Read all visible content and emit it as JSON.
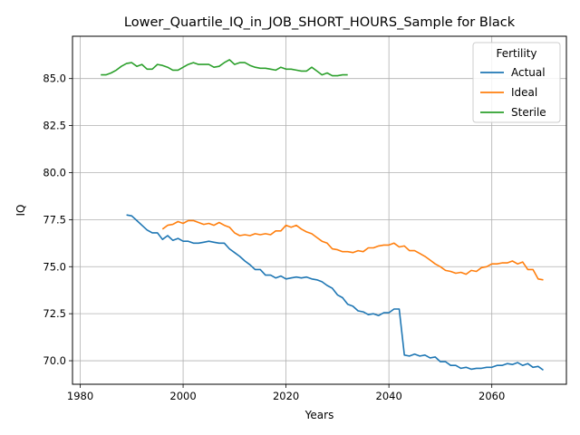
{
  "chart_data": {
    "type": "line",
    "title": "Lower_Quartile_IQ_in_JOB_SHORT_HOURS_Sample for Black",
    "xlabel": "Years",
    "ylabel": "IQ",
    "xlim": [
      1978.5,
      2074.5
    ],
    "ylim": [
      68.75,
      87.25
    ],
    "xticks": [
      1980,
      2000,
      2020,
      2040,
      2060
    ],
    "yticks": [
      70.0,
      72.5,
      75.0,
      77.5,
      80.0,
      82.5,
      85.0
    ],
    "xtick_labels": [
      "1980",
      "2000",
      "2020",
      "2040",
      "2060"
    ],
    "ytick_labels": [
      "70.0",
      "72.5",
      "75.0",
      "77.5",
      "80.0",
      "82.5",
      "85.0"
    ],
    "grid": true,
    "legend": {
      "title": "Fertility",
      "placement": "top-right"
    },
    "series": [
      {
        "name": "Actual",
        "color": "#1f77b4",
        "x": [
          1989,
          1990,
          1991,
          1992,
          1993,
          1994,
          1995,
          1996,
          1997,
          1998,
          1999,
          2000,
          2001,
          2002,
          2003,
          2004,
          2005,
          2006,
          2007,
          2008,
          2009,
          2010,
          2011,
          2012,
          2013,
          2014,
          2015,
          2016,
          2017,
          2018,
          2019,
          2020,
          2021,
          2022,
          2023,
          2024,
          2025,
          2026,
          2027,
          2028,
          2029,
          2030,
          2031,
          2032,
          2033,
          2034,
          2035,
          2036,
          2037,
          2038,
          2039,
          2040,
          2041,
          2042,
          2043,
          2044,
          2045,
          2046,
          2047,
          2048,
          2049,
          2050,
          2051,
          2052,
          2053,
          2054,
          2055,
          2056,
          2057,
          2058,
          2059,
          2060,
          2061,
          2062,
          2063,
          2064,
          2065,
          2066,
          2067,
          2068,
          2069,
          2070
        ],
        "values": [
          77.75,
          77.7,
          77.45,
          77.2,
          76.95,
          76.8,
          76.8,
          76.45,
          76.65,
          76.4,
          76.5,
          76.35,
          76.35,
          76.25,
          76.25,
          76.3,
          76.35,
          76.3,
          76.25,
          76.25,
          75.95,
          75.75,
          75.55,
          75.3,
          75.1,
          74.85,
          74.85,
          74.55,
          74.55,
          74.4,
          74.5,
          74.35,
          74.4,
          74.45,
          74.4,
          74.45,
          74.35,
          74.3,
          74.2,
          74.0,
          73.85,
          73.5,
          73.35,
          73.0,
          72.9,
          72.65,
          72.6,
          72.45,
          72.5,
          72.4,
          72.55,
          72.55,
          72.75,
          72.75,
          70.3,
          70.25,
          70.35,
          70.25,
          70.3,
          70.15,
          70.2,
          69.95,
          69.95,
          69.75,
          69.75,
          69.6,
          69.65,
          69.55,
          69.6,
          69.6,
          69.65,
          69.65,
          69.75,
          69.75,
          69.85,
          69.8,
          69.9,
          69.75,
          69.85,
          69.65,
          69.7,
          69.5
        ]
      },
      {
        "name": "Ideal",
        "color": "#ff7f0e",
        "x": [
          1996,
          1997,
          1998,
          1999,
          2000,
          2001,
          2002,
          2003,
          2004,
          2005,
          2006,
          2007,
          2008,
          2009,
          2010,
          2011,
          2012,
          2013,
          2014,
          2015,
          2016,
          2017,
          2018,
          2019,
          2020,
          2021,
          2022,
          2023,
          2024,
          2025,
          2026,
          2027,
          2028,
          2029,
          2030,
          2031,
          2032,
          2033,
          2034,
          2035,
          2036,
          2037,
          2038,
          2039,
          2040,
          2041,
          2042,
          2043,
          2044,
          2045,
          2046,
          2047,
          2048,
          2049,
          2050,
          2051,
          2052,
          2053,
          2054,
          2055,
          2056,
          2057,
          2058,
          2059,
          2060,
          2061,
          2062,
          2063,
          2064,
          2065,
          2066,
          2067,
          2068,
          2069,
          2070
        ],
        "values": [
          77.0,
          77.2,
          77.25,
          77.4,
          77.3,
          77.45,
          77.45,
          77.35,
          77.25,
          77.3,
          77.2,
          77.35,
          77.2,
          77.1,
          76.8,
          76.65,
          76.7,
          76.65,
          76.75,
          76.7,
          76.75,
          76.7,
          76.9,
          76.9,
          77.2,
          77.1,
          77.2,
          77.0,
          76.85,
          76.75,
          76.55,
          76.35,
          76.25,
          75.95,
          75.9,
          75.8,
          75.8,
          75.75,
          75.85,
          75.8,
          76.0,
          76.0,
          76.1,
          76.15,
          76.15,
          76.25,
          76.05,
          76.1,
          75.85,
          75.85,
          75.7,
          75.55,
          75.35,
          75.15,
          75.0,
          74.8,
          74.75,
          74.65,
          74.7,
          74.6,
          74.8,
          74.75,
          74.95,
          75.0,
          75.15,
          75.15,
          75.2,
          75.2,
          75.3,
          75.15,
          75.25,
          74.85,
          74.85,
          74.35,
          74.3
        ]
      },
      {
        "name": "Sterile",
        "color": "#2ca02c",
        "x": [
          1984,
          1985,
          1986,
          1987,
          1988,
          1989,
          1990,
          1991,
          1992,
          1993,
          1994,
          1995,
          1996,
          1997,
          1998,
          1999,
          2000,
          2001,
          2002,
          2003,
          2004,
          2005,
          2006,
          2007,
          2008,
          2009,
          2010,
          2011,
          2012,
          2013,
          2014,
          2015,
          2016,
          2017,
          2018,
          2019,
          2020,
          2021,
          2022,
          2023,
          2024,
          2025,
          2026,
          2027,
          2028,
          2029,
          2030,
          2031,
          2032
        ],
        "values": [
          85.2,
          85.2,
          85.3,
          85.45,
          85.65,
          85.8,
          85.85,
          85.65,
          85.75,
          85.5,
          85.5,
          85.75,
          85.7,
          85.6,
          85.45,
          85.45,
          85.6,
          85.75,
          85.85,
          85.75,
          85.75,
          85.75,
          85.6,
          85.65,
          85.85,
          86.0,
          85.75,
          85.85,
          85.85,
          85.7,
          85.6,
          85.55,
          85.55,
          85.5,
          85.45,
          85.6,
          85.5,
          85.5,
          85.45,
          85.4,
          85.4,
          85.6,
          85.4,
          85.2,
          85.3,
          85.15,
          85.15,
          85.2,
          85.2
        ]
      }
    ]
  }
}
